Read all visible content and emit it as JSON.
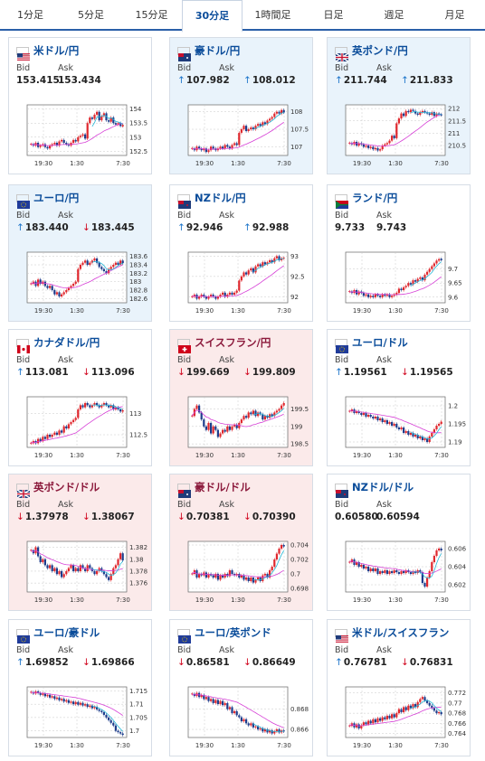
{
  "tabs": [
    "1分足",
    "5分足",
    "15分足",
    "30分足",
    "1時間足",
    "日足",
    "週足",
    "月足"
  ],
  "active_tab": "30分足",
  "labels": {
    "bid": "Bid",
    "ask": "Ask"
  },
  "x_ticks": [
    "19:30",
    "1:30",
    "7:30"
  ],
  "cards": [
    {
      "name": "米ドル/円",
      "state": "neutral",
      "flag": "us",
      "bid": "153.415",
      "ask": "153.434",
      "bid_dir": "",
      "ask_dir": "",
      "yticks": [
        "154",
        "153.5",
        "153",
        "152.5"
      ],
      "yrange": [
        152.35,
        154.15
      ],
      "close": [
        152.75,
        152.7,
        152.8,
        152.65,
        152.7,
        152.75,
        152.65,
        152.6,
        152.7,
        152.75,
        152.8,
        152.7,
        152.85,
        152.9,
        152.8,
        152.75,
        152.7,
        152.8,
        152.9,
        152.85,
        153.0,
        153.05,
        153.1,
        152.95,
        153.5,
        153.7,
        153.65,
        153.8,
        153.9,
        153.6,
        153.75,
        153.85,
        153.6,
        153.55,
        153.7,
        153.5,
        153.45,
        153.5,
        153.4,
        153.42
      ]
    },
    {
      "name": "豪ドル/円",
      "state": "up",
      "flag": "au",
      "bid": "107.982",
      "ask": "108.012",
      "bid_dir": "up",
      "ask_dir": "up",
      "yticks": [
        "108",
        "107.5",
        "107"
      ],
      "yrange": [
        106.75,
        108.2
      ],
      "close": [
        106.95,
        106.9,
        107.0,
        106.95,
        106.9,
        106.95,
        106.85,
        106.9,
        107.0,
        106.95,
        106.9,
        106.95,
        107.0,
        106.95,
        107.05,
        107.0,
        106.95,
        107.05,
        107.1,
        107.05,
        107.4,
        107.5,
        107.6,
        107.45,
        107.5,
        107.55,
        107.5,
        107.6,
        107.65,
        107.6,
        107.7,
        107.65,
        107.75,
        107.8,
        107.85,
        107.95,
        108.0,
        107.95,
        108.05,
        107.98
      ]
    },
    {
      "name": "英ポンド/円",
      "state": "up",
      "flag": "uk",
      "bid": "211.744",
      "ask": "211.833",
      "bid_dir": "up",
      "ask_dir": "up",
      "yticks": [
        "212",
        "211.5",
        "211",
        "210.5"
      ],
      "yrange": [
        210.1,
        212.15
      ],
      "close": [
        210.6,
        210.55,
        210.65,
        210.5,
        210.6,
        210.55,
        210.45,
        210.5,
        210.4,
        210.45,
        210.35,
        210.4,
        210.3,
        210.35,
        210.5,
        210.55,
        210.6,
        210.7,
        210.9,
        210.8,
        211.4,
        211.6,
        211.8,
        211.7,
        211.9,
        211.85,
        211.95,
        211.9,
        211.8,
        211.75,
        211.85,
        211.9,
        211.85,
        211.8,
        211.75,
        211.85,
        211.7,
        211.8,
        211.75,
        211.74
      ]
    },
    {
      "name": "ユーロ/円",
      "state": "up",
      "flag": "eu",
      "bid": "183.440",
      "ask": "183.445",
      "bid_dir": "up",
      "ask_dir": "down",
      "yticks": [
        "183.6",
        "183.4",
        "183.2",
        "183",
        "182.8",
        "182.6"
      ],
      "yrange": [
        182.5,
        183.7
      ],
      "close": [
        182.95,
        183.0,
        182.9,
        183.05,
        182.95,
        183.0,
        182.9,
        182.85,
        182.9,
        182.8,
        182.7,
        182.75,
        182.65,
        182.7,
        182.75,
        182.8,
        182.85,
        182.9,
        182.95,
        183.0,
        183.3,
        183.4,
        183.45,
        183.5,
        183.4,
        183.45,
        183.5,
        183.55,
        183.45,
        183.35,
        183.3,
        183.25,
        183.2,
        183.3,
        183.35,
        183.4,
        183.45,
        183.4,
        183.5,
        183.44
      ]
    },
    {
      "name": "NZドル/円",
      "state": "neutral",
      "flag": "nz",
      "bid": "92.946",
      "ask": "92.988",
      "bid_dir": "up",
      "ask_dir": "up",
      "yticks": [
        "93",
        "92.5",
        "92"
      ],
      "yrange": [
        91.85,
        93.1
      ],
      "close": [
        92.0,
        92.05,
        91.95,
        92.0,
        92.05,
        92.0,
        91.95,
        92.0,
        92.05,
        92.0,
        91.95,
        92.0,
        92.05,
        92.1,
        92.0,
        92.05,
        92.1,
        92.05,
        92.1,
        92.15,
        92.4,
        92.5,
        92.6,
        92.55,
        92.65,
        92.7,
        92.6,
        92.75,
        92.8,
        92.75,
        92.85,
        92.8,
        92.85,
        92.9,
        92.85,
        92.95,
        93.0,
        92.9,
        92.95,
        92.95
      ]
    },
    {
      "name": "ランド/円",
      "state": "neutral",
      "flag": "za",
      "bid": "9.733",
      "ask": "9.743",
      "bid_dir": "",
      "ask_dir": "",
      "yticks": [
        "9.7",
        "9.65",
        "9.6"
      ],
      "yrange": [
        9.58,
        9.76
      ],
      "close": [
        9.62,
        9.615,
        9.625,
        9.61,
        9.62,
        9.615,
        9.605,
        9.61,
        9.6,
        9.605,
        9.6,
        9.61,
        9.605,
        9.6,
        9.61,
        9.605,
        9.61,
        9.6,
        9.605,
        9.61,
        9.615,
        9.63,
        9.625,
        9.635,
        9.64,
        9.65,
        9.645,
        9.66,
        9.655,
        9.665,
        9.67,
        9.66,
        9.68,
        9.69,
        9.7,
        9.71,
        9.72,
        9.73,
        9.735,
        9.733
      ]
    },
    {
      "name": "カナダドル/円",
      "state": "neutral",
      "flag": "ca",
      "bid": "113.081",
      "ask": "113.096",
      "bid_dir": "up",
      "ask_dir": "down",
      "yticks": [
        "113",
        "112.5"
      ],
      "yrange": [
        112.2,
        113.4
      ],
      "close": [
        112.3,
        112.35,
        112.3,
        112.4,
        112.35,
        112.45,
        112.4,
        112.5,
        112.45,
        112.5,
        112.55,
        112.5,
        112.6,
        112.55,
        112.7,
        112.65,
        112.75,
        112.8,
        112.85,
        112.9,
        113.1,
        113.2,
        113.15,
        113.25,
        113.2,
        113.15,
        113.2,
        113.25,
        113.2,
        113.15,
        113.2,
        113.25,
        113.2,
        113.15,
        113.2,
        113.1,
        113.15,
        113.1,
        113.05,
        113.08
      ]
    },
    {
      "name": "スイスフラン/円",
      "state": "down",
      "flag": "ch",
      "bid": "199.669",
      "ask": "199.809",
      "bid_dir": "down",
      "ask_dir": "down",
      "yticks": [
        "199.5",
        "199",
        "198.5"
      ],
      "yrange": [
        198.4,
        199.85
      ],
      "close": [
        199.3,
        199.5,
        199.6,
        199.4,
        199.2,
        199.0,
        198.9,
        199.1,
        198.8,
        199.0,
        198.9,
        198.7,
        198.8,
        198.9,
        198.85,
        199.0,
        198.9,
        199.0,
        199.05,
        198.95,
        199.1,
        199.2,
        199.3,
        199.25,
        199.4,
        199.35,
        199.45,
        199.3,
        199.4,
        199.35,
        199.2,
        199.3,
        199.25,
        199.35,
        199.3,
        199.4,
        199.45,
        199.5,
        199.6,
        199.67
      ]
    },
    {
      "name": "ユーロ/ドル",
      "state": "neutral",
      "flag": "eu",
      "bid": "1.19561",
      "ask": "1.19565",
      "bid_dir": "up",
      "ask_dir": "down",
      "yticks": [
        "1.2",
        "1.195",
        "1.19"
      ],
      "yrange": [
        1.1885,
        1.2025
      ],
      "close": [
        1.1985,
        1.199,
        1.198,
        1.1985,
        1.198,
        1.1975,
        1.198,
        1.197,
        1.1975,
        1.197,
        1.1965,
        1.197,
        1.196,
        1.1965,
        1.1955,
        1.196,
        1.195,
        1.1955,
        1.1945,
        1.195,
        1.194,
        1.1935,
        1.194,
        1.1925,
        1.193,
        1.192,
        1.1925,
        1.1915,
        1.192,
        1.191,
        1.1915,
        1.1905,
        1.191,
        1.19,
        1.1915,
        1.1925,
        1.1935,
        1.1945,
        1.195,
        1.1956
      ]
    },
    {
      "name": "英ポンド/ドル",
      "state": "down",
      "flag": "uk",
      "bid": "1.37978",
      "ask": "1.38067",
      "bid_dir": "down",
      "ask_dir": "down",
      "yticks": [
        "1.382",
        "1.38",
        "1.378",
        "1.376"
      ],
      "yrange": [
        1.3745,
        1.383
      ],
      "close": [
        1.3815,
        1.381,
        1.382,
        1.3805,
        1.3795,
        1.38,
        1.379,
        1.3785,
        1.379,
        1.378,
        1.3785,
        1.3775,
        1.378,
        1.377,
        1.3775,
        1.378,
        1.3785,
        1.379,
        1.378,
        1.3785,
        1.378,
        1.379,
        1.3785,
        1.378,
        1.379,
        1.3785,
        1.378,
        1.3775,
        1.378,
        1.3785,
        1.378,
        1.3775,
        1.377,
        1.3765,
        1.3775,
        1.3785,
        1.379,
        1.38,
        1.381,
        1.3798
      ]
    },
    {
      "name": "豪ドル/ドル",
      "state": "down",
      "flag": "au",
      "bid": "0.70381",
      "ask": "0.70390",
      "bid_dir": "down",
      "ask_dir": "down",
      "yticks": [
        "0.704",
        "0.702",
        "0.7",
        "0.698"
      ],
      "yrange": [
        0.6975,
        0.7045
      ],
      "close": [
        0.7,
        0.7005,
        0.6995,
        0.7,
        0.6998,
        0.7002,
        0.6995,
        0.7,
        0.6998,
        0.6995,
        0.7,
        0.6992,
        0.6998,
        0.6995,
        0.7,
        0.6997,
        0.7005,
        0.7,
        0.6998,
        0.7,
        0.6995,
        0.6998,
        0.6992,
        0.6995,
        0.699,
        0.6995,
        0.6988,
        0.6992,
        0.6995,
        0.699,
        0.6998,
        0.7,
        0.6995,
        0.7005,
        0.701,
        0.702,
        0.7028,
        0.7035,
        0.704,
        0.7038
      ]
    },
    {
      "name": "NZドル/ドル",
      "state": "neutral",
      "flag": "nz",
      "bid": "0.60580",
      "ask": "0.60594",
      "bid_dir": "",
      "ask_dir": "",
      "yticks": [
        "0.606",
        "0.604",
        "0.602"
      ],
      "yrange": [
        0.6012,
        0.6068
      ],
      "close": [
        0.6045,
        0.6048,
        0.6042,
        0.6045,
        0.604,
        0.6042,
        0.6038,
        0.604,
        0.6035,
        0.6038,
        0.6035,
        0.6038,
        0.6032,
        0.6035,
        0.6033,
        0.6036,
        0.6032,
        0.6035,
        0.6033,
        0.6036,
        0.6034,
        0.6032,
        0.6035,
        0.6033,
        0.6036,
        0.6034,
        0.6032,
        0.6035,
        0.6033,
        0.6036,
        0.6034,
        0.6022,
        0.6018,
        0.6028,
        0.6035,
        0.6045,
        0.6052,
        0.6058,
        0.606,
        0.6058
      ]
    },
    {
      "name": "ユーロ/豪ドル",
      "state": "neutral",
      "flag": "eu",
      "bid": "1.69852",
      "ask": "1.69866",
      "bid_dir": "up",
      "ask_dir": "down",
      "yticks": [
        "1.715",
        "1.71",
        "1.705",
        "1.7"
      ],
      "yrange": [
        1.6975,
        1.7165
      ],
      "close": [
        1.7145,
        1.714,
        1.7148,
        1.7142,
        1.7135,
        1.714,
        1.713,
        1.7135,
        1.7125,
        1.713,
        1.712,
        1.7125,
        1.7115,
        1.712,
        1.711,
        1.7115,
        1.7105,
        1.711,
        1.71,
        1.7108,
        1.7098,
        1.7105,
        1.7095,
        1.71,
        1.709,
        1.7095,
        1.7085,
        1.709,
        1.708,
        1.7075,
        1.707,
        1.706,
        1.705,
        1.704,
        1.703,
        1.702,
        1.7,
        1.6995,
        1.699,
        1.6985
      ]
    },
    {
      "name": "ユーロ/英ポンド",
      "state": "neutral",
      "flag": "eu",
      "bid": "0.86581",
      "ask": "0.86649",
      "bid_dir": "down",
      "ask_dir": "down",
      "yticks": [
        "0.868",
        "0.866"
      ],
      "yrange": [
        0.8652,
        0.8702
      ],
      "close": [
        0.8695,
        0.8693,
        0.8696,
        0.8692,
        0.8694,
        0.869,
        0.8692,
        0.8688,
        0.869,
        0.8686,
        0.8689,
        0.8685,
        0.8688,
        0.8684,
        0.8686,
        0.868,
        0.8682,
        0.8676,
        0.8678,
        0.8674,
        0.8672,
        0.8668,
        0.867,
        0.8666,
        0.8664,
        0.8666,
        0.8662,
        0.8663,
        0.866,
        0.8661,
        0.8658,
        0.866,
        0.8657,
        0.8659,
        0.8656,
        0.8658,
        0.866,
        0.8657,
        0.8659,
        0.8658
      ]
    },
    {
      "name": "米ドル/スイスフラン",
      "state": "neutral",
      "flag": "us",
      "bid": "0.76781",
      "ask": "0.76831",
      "bid_dir": "up",
      "ask_dir": "down",
      "yticks": [
        "0.772",
        "0.77",
        "0.768",
        "0.766",
        "0.764"
      ],
      "yrange": [
        0.7632,
        0.7732
      ],
      "close": [
        0.7655,
        0.766,
        0.7652,
        0.7658,
        0.765,
        0.7656,
        0.7662,
        0.7658,
        0.7665,
        0.766,
        0.7668,
        0.7662,
        0.767,
        0.7665,
        0.7672,
        0.7668,
        0.7675,
        0.767,
        0.7678,
        0.7672,
        0.768,
        0.7688,
        0.7682,
        0.7692,
        0.7686,
        0.7695,
        0.769,
        0.7698,
        0.7692,
        0.7702,
        0.7708,
        0.7712,
        0.7705,
        0.77,
        0.7695,
        0.769,
        0.7685,
        0.768,
        0.7682,
        0.7678
      ]
    }
  ]
}
